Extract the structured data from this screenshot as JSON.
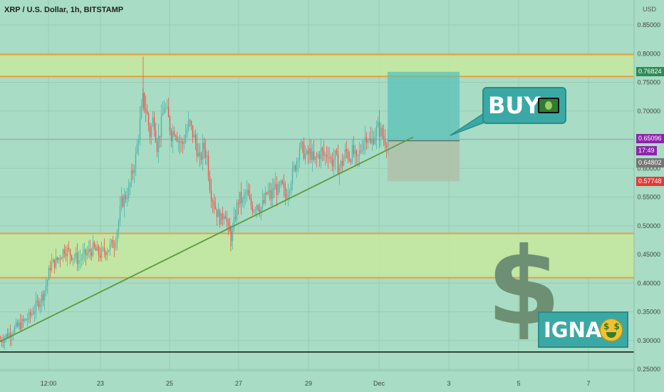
{
  "header": {
    "title": "XRP / U.S. Dollar, 1h, BITSTAMP",
    "currency": "USD"
  },
  "chart_data": {
    "type": "candlestick",
    "ylim": [
      0.25,
      0.88
    ],
    "y_ticks": [
      "0.85000",
      "0.80000",
      "0.75000",
      "0.70000",
      "0.65000",
      "0.60000",
      "0.55000",
      "0.50000",
      "0.45000",
      "0.40000",
      "0.35000",
      "0.30000",
      "0.25000"
    ],
    "x_ticks": [
      "12:00",
      "23",
      "25",
      "27",
      "29",
      "Dec",
      "3",
      "5",
      "7"
    ],
    "price_path": [
      [
        0,
        0.3
      ],
      [
        10,
        0.31
      ],
      [
        20,
        0.32
      ],
      [
        30,
        0.33
      ],
      [
        40,
        0.34
      ],
      [
        50,
        0.36
      ],
      [
        60,
        0.38
      ],
      [
        65,
        0.4
      ],
      [
        70,
        0.43
      ],
      [
        80,
        0.44
      ],
      [
        90,
        0.46
      ],
      [
        100,
        0.45
      ],
      [
        110,
        0.44
      ],
      [
        120,
        0.45
      ],
      [
        130,
        0.46
      ],
      [
        140,
        0.45
      ],
      [
        150,
        0.46
      ],
      [
        160,
        0.47
      ],
      [
        165,
        0.5
      ],
      [
        170,
        0.54
      ],
      [
        180,
        0.56
      ],
      [
        190,
        0.62
      ],
      [
        200,
        0.72
      ],
      [
        205,
        0.7
      ],
      [
        210,
        0.66
      ],
      [
        215,
        0.69
      ],
      [
        220,
        0.64
      ],
      [
        225,
        0.67
      ],
      [
        230,
        0.71
      ],
      [
        235,
        0.69
      ],
      [
        240,
        0.66
      ],
      [
        245,
        0.67
      ],
      [
        250,
        0.65
      ],
      [
        255,
        0.64
      ],
      [
        260,
        0.66
      ],
      [
        265,
        0.68
      ],
      [
        270,
        0.66
      ],
      [
        275,
        0.64
      ],
      [
        280,
        0.61
      ],
      [
        285,
        0.64
      ],
      [
        290,
        0.62
      ],
      [
        295,
        0.56
      ],
      [
        300,
        0.54
      ],
      [
        305,
        0.52
      ],
      [
        310,
        0.51
      ],
      [
        315,
        0.53
      ],
      [
        320,
        0.49
      ],
      [
        325,
        0.48
      ],
      [
        330,
        0.52
      ],
      [
        335,
        0.55
      ],
      [
        340,
        0.54
      ],
      [
        345,
        0.56
      ],
      [
        350,
        0.54
      ],
      [
        355,
        0.53
      ],
      [
        360,
        0.54
      ],
      [
        365,
        0.53
      ],
      [
        370,
        0.54
      ],
      [
        375,
        0.56
      ],
      [
        380,
        0.55
      ],
      [
        385,
        0.57
      ],
      [
        390,
        0.56
      ],
      [
        395,
        0.57
      ],
      [
        400,
        0.55
      ],
      [
        405,
        0.57
      ],
      [
        410,
        0.59
      ],
      [
        415,
        0.61
      ],
      [
        420,
        0.64
      ],
      [
        425,
        0.63
      ],
      [
        430,
        0.62
      ],
      [
        435,
        0.63
      ],
      [
        440,
        0.61
      ],
      [
        445,
        0.62
      ],
      [
        450,
        0.63
      ],
      [
        455,
        0.62
      ],
      [
        460,
        0.63
      ],
      [
        465,
        0.61
      ],
      [
        470,
        0.62
      ],
      [
        475,
        0.6
      ],
      [
        480,
        0.61
      ],
      [
        485,
        0.63
      ],
      [
        490,
        0.62
      ],
      [
        495,
        0.63
      ],
      [
        500,
        0.61
      ],
      [
        505,
        0.63
      ],
      [
        510,
        0.65
      ],
      [
        515,
        0.66
      ],
      [
        520,
        0.64
      ],
      [
        525,
        0.66
      ],
      [
        530,
        0.67
      ],
      [
        535,
        0.66
      ],
      [
        540,
        0.65
      ],
      [
        545,
        0.65
      ]
    ],
    "zones": [
      {
        "name": "resistance",
        "top": 0.7985,
        "bottom": 0.7602,
        "color": "#c7e89e"
      },
      {
        "name": "support",
        "top": 0.4867,
        "bottom": 0.4094,
        "color": "#c7e89e"
      }
    ],
    "zone_line_color": "#e8a03a",
    "baseline": 0.28,
    "trendline": {
      "x1": 0,
      "y1": 0.298,
      "x2": 580,
      "y2": 0.6545,
      "color": "#5a9b3d"
    },
    "position": {
      "entry": 0.648,
      "target": 0.76824,
      "stop": 0.57748,
      "x_start": 544,
      "x_end": 645,
      "profit_color": "#59c1b8",
      "loss_color": "#b0c0a8"
    },
    "current_line": 0.65096,
    "bull_color": "#4db6ac",
    "bear_color": "#ef5350"
  },
  "price_tags": {
    "target": {
      "label": "0.76824",
      "color": "#2e8b57"
    },
    "current": {
      "label": "0.65096",
      "color": "#8e24aa"
    },
    "time": {
      "label": "17:49",
      "color": "#8e24aa"
    },
    "entry": {
      "label": "0.64802",
      "color": "#757575"
    },
    "stop": {
      "label": "0.57748",
      "color": "#e53935"
    }
  },
  "annotations": {
    "buy_label": "BUY",
    "signal_label": "IGNAL",
    "dollar_glyph": "$"
  }
}
